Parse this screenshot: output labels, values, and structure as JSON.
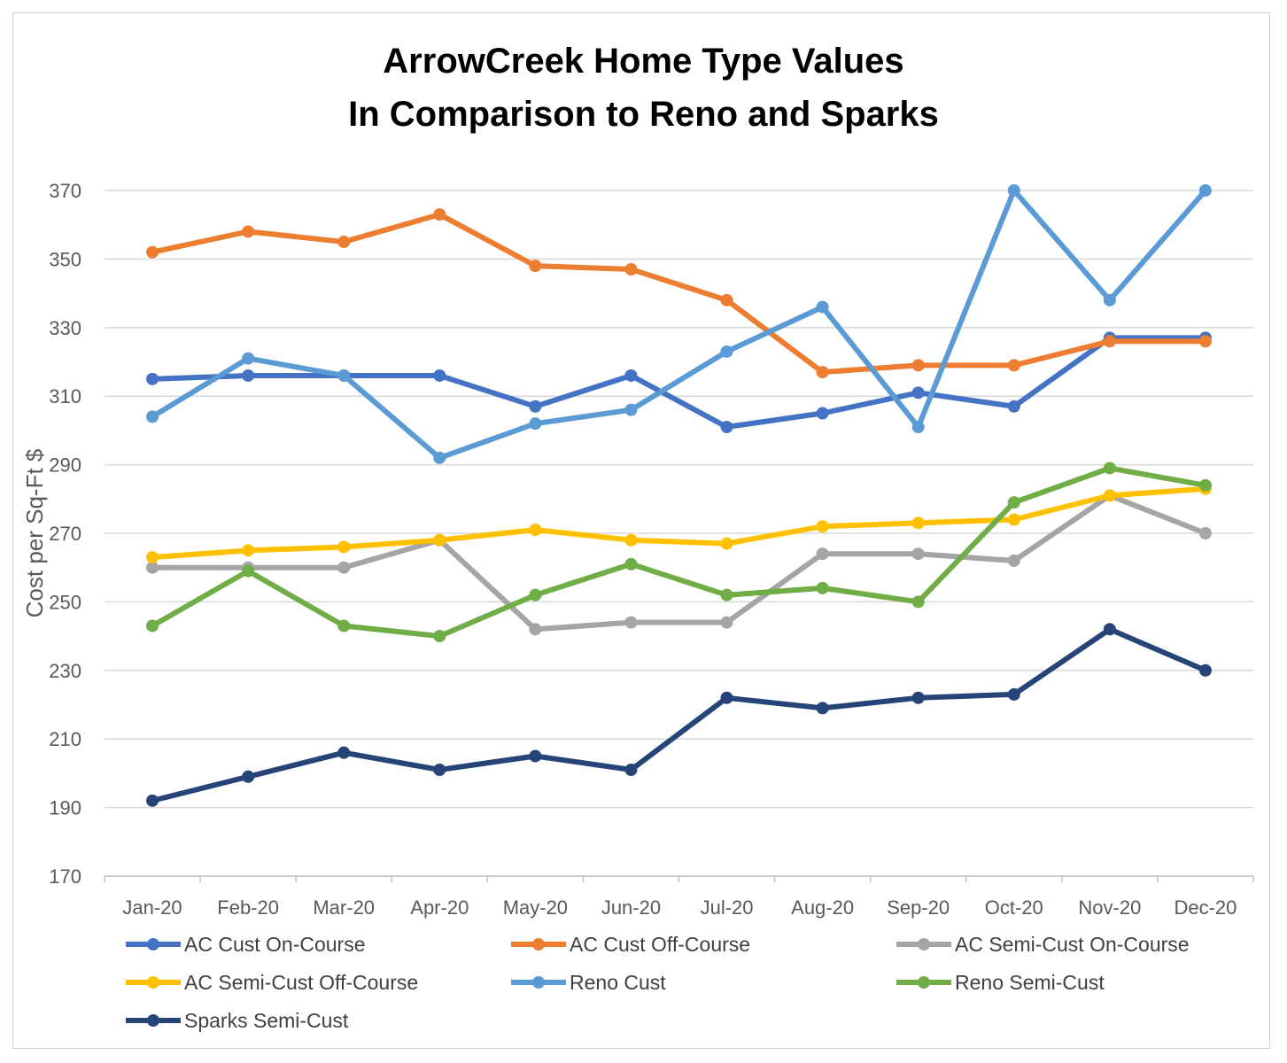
{
  "chart_data": {
    "type": "line",
    "title_lines": [
      "ArrowCreek Home Type Values",
      "In Comparison to Reno and Sparks"
    ],
    "xlabel": "",
    "ylabel": "Cost per Sq-Ft $",
    "ylim": [
      170,
      370
    ],
    "yticks": [
      170,
      190,
      210,
      230,
      250,
      270,
      290,
      310,
      330,
      350,
      370
    ],
    "ytick_labels": [
      "170",
      "190",
      "210",
      "230",
      "250",
      "270",
      "290",
      "310",
      "330",
      "350",
      "370"
    ],
    "grid": true,
    "legend_position": "bottom",
    "categories": [
      "Jan-20",
      "Feb-20",
      "Mar-20",
      "Apr-20",
      "May-20",
      "Jun-20",
      "Jul-20",
      "Aug-20",
      "Sep-20",
      "Oct-20",
      "Nov-20",
      "Dec-20"
    ],
    "series": [
      {
        "name": "AC Cust On-Course",
        "color": "#4472C4",
        "values": [
          315,
          316,
          316,
          316,
          307,
          316,
          301,
          305,
          311,
          307,
          327,
          327
        ]
      },
      {
        "name": "AC Cust Off-Course",
        "color": "#ED7D31",
        "values": [
          352,
          358,
          355,
          363,
          348,
          347,
          338,
          317,
          319,
          319,
          326,
          326
        ]
      },
      {
        "name": "AC Semi-Cust On-Course",
        "color": "#A5A5A5",
        "values": [
          260,
          260,
          260,
          268,
          242,
          244,
          244,
          264,
          264,
          262,
          281,
          270
        ]
      },
      {
        "name": "AC Semi-Cust Off-Course",
        "color": "#FFC000",
        "values": [
          263,
          265,
          266,
          268,
          271,
          268,
          267,
          272,
          273,
          274,
          281,
          283
        ]
      },
      {
        "name": "Reno Cust",
        "color": "#5B9BD5",
        "values": [
          304,
          321,
          316,
          292,
          302,
          306,
          323,
          336,
          301,
          370,
          338,
          370
        ]
      },
      {
        "name": "Reno Semi-Cust",
        "color": "#70AD47",
        "values": [
          243,
          259,
          243,
          240,
          252,
          261,
          252,
          254,
          250,
          279,
          289,
          284
        ]
      },
      {
        "name": "Sparks Semi-Cust",
        "color": "#264478",
        "values": [
          192,
          199,
          206,
          201,
          205,
          201,
          222,
          219,
          222,
          223,
          242,
          230
        ]
      }
    ]
  },
  "colors": {
    "gridline": "#d9d9d9",
    "axis": "#bfbfbf",
    "text": "#595959"
  }
}
